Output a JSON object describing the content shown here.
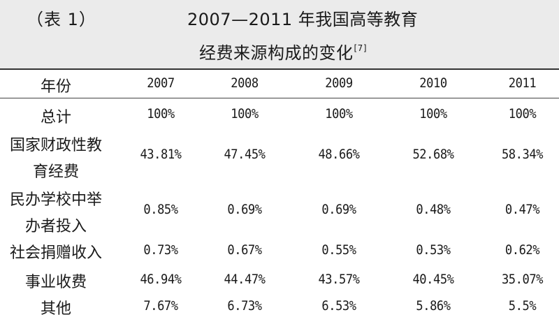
{
  "table_number": "（表 1）",
  "title_line1": "2007—2011 年我国高等教育",
  "title_line2": "经费来源构成的变化",
  "citation": "[7]",
  "columns": [
    "年份",
    "2007",
    "2008",
    "2009",
    "2010",
    "2011"
  ],
  "rows": [
    {
      "label": [
        "总计"
      ],
      "values": [
        "100%",
        "100%",
        "100%",
        "100%",
        "100%"
      ]
    },
    {
      "label": [
        "国家财政性教",
        "育经费"
      ],
      "values": [
        "43.81%",
        "47.45%",
        "48.66%",
        "52.68%",
        "58.34%"
      ]
    },
    {
      "label": [
        "民办学校中举",
        "办者投入"
      ],
      "values": [
        "0.85%",
        "0.69%",
        "0.69%",
        "0.48%",
        "0.47%"
      ]
    },
    {
      "label": [
        "社会捐赠收入"
      ],
      "values": [
        "0.73%",
        "0.67%",
        "0.55%",
        "0.53%",
        "0.62%"
      ]
    },
    {
      "label": [
        "事业收费"
      ],
      "values": [
        "46.94%",
        "44.47%",
        "43.57%",
        "40.45%",
        "35.07%"
      ]
    },
    {
      "label": [
        "其他"
      ],
      "values": [
        "7.67%",
        "6.73%",
        "6.53%",
        "5.86%",
        "5.5%"
      ]
    }
  ],
  "colors": {
    "header_background": "#ebebeb",
    "text": "#1a1a1a"
  }
}
